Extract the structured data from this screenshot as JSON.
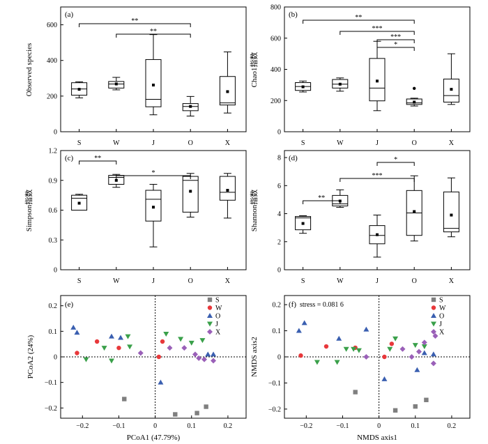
{
  "chart_data": [
    {
      "type": "box",
      "panel_label": "(a)",
      "categories": [
        "S",
        "W",
        "J",
        "O",
        "X"
      ],
      "ylabel": "Observed species",
      "ylim": [
        0,
        700
      ],
      "yticks": [
        "0",
        "200",
        "400",
        "600"
      ],
      "boxes": [
        {
          "min": 190,
          "q1": 205,
          "median": 240,
          "q3": 275,
          "max": 280,
          "mean": 238
        },
        {
          "min": 235,
          "q1": 245,
          "median": 268,
          "q3": 282,
          "max": 305,
          "mean": 268
        },
        {
          "min": 95,
          "q1": 140,
          "median": 182,
          "q3": 405,
          "max": 545,
          "mean": 262
        },
        {
          "min": 88,
          "q1": 118,
          "median": 142,
          "q3": 158,
          "max": 198,
          "mean": 142
        },
        {
          "min": 105,
          "q1": 150,
          "median": 162,
          "q3": 310,
          "max": 448,
          "mean": 225
        }
      ],
      "outliers": [],
      "significance": [
        {
          "from": 0,
          "to": 3,
          "label": "**"
        },
        {
          "from": 1,
          "to": 3,
          "label": "**"
        }
      ]
    },
    {
      "type": "box",
      "panel_label": "(b)",
      "categories": [
        "S",
        "W",
        "J",
        "O",
        "X"
      ],
      "ylabel": "Chao1指数",
      "ylim": [
        0,
        800
      ],
      "yticks": [
        "0",
        "200",
        "400",
        "600",
        "800"
      ],
      "boxes": [
        {
          "min": 255,
          "q1": 265,
          "median": 290,
          "q3": 315,
          "max": 325,
          "mean": 288
        },
        {
          "min": 260,
          "q1": 280,
          "median": 305,
          "q3": 335,
          "max": 345,
          "mean": 305
        },
        {
          "min": 135,
          "q1": 198,
          "median": 280,
          "q3": 470,
          "max": 580,
          "mean": 325
        },
        {
          "min": 165,
          "q1": 175,
          "median": 185,
          "q3": 210,
          "max": 215,
          "mean": 190
        },
        {
          "min": 175,
          "q1": 190,
          "median": 232,
          "q3": 338,
          "max": 500,
          "mean": 272
        }
      ],
      "outliers": [
        {
          "box": 3,
          "value": 278
        }
      ],
      "significance": [
        {
          "from": 0,
          "to": 3,
          "label": "**"
        },
        {
          "from": 1,
          "to": 3,
          "label": "***"
        },
        {
          "from": 2,
          "to": 3,
          "label": "***"
        },
        {
          "from": 2,
          "to": 3,
          "label": "*"
        }
      ]
    },
    {
      "type": "box",
      "panel_label": "(c)",
      "categories": [
        "S",
        "W",
        "J",
        "O",
        "X"
      ],
      "ylabel": "Simpson指数",
      "ylim": [
        0,
        1.2
      ],
      "yticks": [
        "0",
        "0.3",
        "0.6",
        "0.9",
        "1.2"
      ],
      "boxes": [
        {
          "min": 0.6,
          "q1": 0.6,
          "median": 0.72,
          "q3": 0.75,
          "max": 0.76,
          "mean": 0.67
        },
        {
          "min": 0.83,
          "q1": 0.86,
          "median": 0.93,
          "q3": 0.95,
          "max": 0.96,
          "mean": 0.9
        },
        {
          "min": 0.23,
          "q1": 0.49,
          "median": 0.71,
          "q3": 0.8,
          "max": 0.86,
          "mean": 0.63
        },
        {
          "min": 0.53,
          "q1": 0.58,
          "median": 0.9,
          "q3": 0.94,
          "max": 0.97,
          "mean": 0.79
        },
        {
          "min": 0.52,
          "q1": 0.7,
          "median": 0.78,
          "q3": 0.94,
          "max": 0.97,
          "mean": 0.8
        }
      ],
      "outliers": [],
      "significance": [
        {
          "from": 0,
          "to": 1,
          "label": "**"
        },
        {
          "from": 1,
          "to": 3,
          "label": "*"
        }
      ]
    },
    {
      "type": "box",
      "panel_label": "(d)",
      "categories": [
        "S",
        "W",
        "J",
        "O",
        "X"
      ],
      "ylabel": "Shannon指数",
      "ylim": [
        0,
        8.5
      ],
      "yticks": [
        "0",
        "2",
        "4",
        "6",
        "8"
      ],
      "boxes": [
        {
          "min": 2.6,
          "q1": 2.85,
          "median": 3.7,
          "q3": 3.8,
          "max": 3.85,
          "mean": 3.3
        },
        {
          "min": 4.45,
          "q1": 4.55,
          "median": 4.7,
          "q3": 5.3,
          "max": 5.7,
          "mean": 4.9
        },
        {
          "min": 0.9,
          "q1": 1.85,
          "median": 2.45,
          "q3": 3.15,
          "max": 3.9,
          "mean": 2.5
        },
        {
          "min": 2.05,
          "q1": 2.45,
          "median": 4.05,
          "q3": 5.65,
          "max": 6.7,
          "mean": 4.15
        },
        {
          "min": 2.35,
          "q1": 2.7,
          "median": 2.95,
          "q3": 5.55,
          "max": 6.55,
          "mean": 3.9
        }
      ],
      "outliers": [],
      "significance": [
        {
          "from": 0,
          "to": 1,
          "label": "**"
        },
        {
          "from": 1,
          "to": 3,
          "label": "***"
        },
        {
          "from": 2,
          "to": 3,
          "label": "*"
        }
      ]
    },
    {
      "type": "scatter",
      "panel_label": "(e)",
      "xlabel": "PCoA1 (47.79%)",
      "ylabel": "PCoA2 (24%)",
      "xlim": [
        -0.26,
        0.25
      ],
      "ylim": [
        -0.24,
        0.24
      ],
      "xticks": [
        -0.2,
        -0.1,
        0,
        0.1,
        0.2
      ],
      "yticks": [
        -0.2,
        -0.1,
        0,
        0.1,
        0.2
      ],
      "xtick_labels": [
        "−0.2",
        "−0.1",
        "0",
        "0.1",
        "0.2"
      ],
      "ytick_labels": [
        "−0.2",
        "−0.1",
        "0",
        "0.1",
        "0.2"
      ],
      "series": [
        {
          "name": "S",
          "marker": "square",
          "color": "#7f7f7f",
          "points": [
            [
              -0.085,
              -0.165
            ],
            [
              0.055,
              -0.225
            ],
            [
              0.115,
              -0.22
            ],
            [
              0.14,
              -0.195
            ]
          ]
        },
        {
          "name": "W",
          "marker": "circle",
          "color": "#e8383b",
          "points": [
            [
              -0.215,
              0.015
            ],
            [
              -0.16,
              0.06
            ],
            [
              -0.1,
              0.035
            ],
            [
              0.01,
              0.0
            ],
            [
              0.02,
              0.06
            ]
          ]
        },
        {
          "name": "O",
          "marker": "triangle-up",
          "color": "#3a5fb0",
          "points": [
            [
              -0.225,
              0.115
            ],
            [
              -0.215,
              0.095
            ],
            [
              -0.12,
              0.08
            ],
            [
              -0.095,
              0.075
            ],
            [
              0.015,
              -0.1
            ],
            [
              0.145,
              0.01
            ],
            [
              0.16,
              0.01
            ]
          ]
        },
        {
          "name": "J",
          "marker": "triangle-down",
          "color": "#3aa04a",
          "points": [
            [
              -0.19,
              -0.01
            ],
            [
              -0.14,
              0.035
            ],
            [
              -0.12,
              -0.015
            ],
            [
              -0.075,
              0.08
            ],
            [
              -0.07,
              0.04
            ],
            [
              0.03,
              0.09
            ],
            [
              0.07,
              0.07
            ],
            [
              0.1,
              0.055
            ],
            [
              0.13,
              0.065
            ]
          ]
        },
        {
          "name": "X",
          "marker": "diamond",
          "color": "#9a60b8",
          "points": [
            [
              -0.04,
              0.015
            ],
            [
              0.04,
              0.035
            ],
            [
              0.08,
              0.035
            ],
            [
              0.11,
              0.01
            ],
            [
              0.12,
              -0.005
            ],
            [
              0.135,
              -0.01
            ],
            [
              0.16,
              -0.015
            ]
          ]
        }
      ]
    },
    {
      "type": "scatter",
      "panel_label": "(f)",
      "annotation": "stress = 0.081 6",
      "xlabel": "NMDS axis1",
      "ylabel": "NMDS axis2",
      "xlim": [
        -0.26,
        0.25
      ],
      "ylim": [
        -0.235,
        0.235
      ],
      "xticks": [
        -0.2,
        -0.1,
        0,
        0.1,
        0.2
      ],
      "yticks": [
        -0.2,
        -0.1,
        0,
        0.1,
        0.2
      ],
      "xtick_labels": [
        "−0.2",
        "−0.1",
        "0",
        "0.1",
        "0.2"
      ],
      "ytick_labels": [
        "−0.2",
        "−0.1",
        "0",
        "0.1",
        "0.2"
      ],
      "series": [
        {
          "name": "S",
          "marker": "square",
          "color": "#7f7f7f",
          "points": [
            [
              -0.065,
              -0.135
            ],
            [
              0.045,
              -0.205
            ],
            [
              0.1,
              -0.19
            ],
            [
              0.13,
              -0.165
            ]
          ]
        },
        {
          "name": "W",
          "marker": "circle",
          "color": "#e8383b",
          "points": [
            [
              -0.215,
              0.005
            ],
            [
              -0.145,
              0.04
            ],
            [
              -0.065,
              0.035
            ],
            [
              0.015,
              0.0
            ],
            [
              0.035,
              0.05
            ]
          ]
        },
        {
          "name": "O",
          "marker": "triangle-up",
          "color": "#3a5fb0",
          "points": [
            [
              -0.22,
              0.1
            ],
            [
              -0.205,
              0.13
            ],
            [
              -0.11,
              0.07
            ],
            [
              -0.035,
              0.105
            ],
            [
              0.015,
              -0.085
            ],
            [
              0.105,
              -0.05
            ],
            [
              0.125,
              0.015
            ],
            [
              0.15,
              0.01
            ]
          ]
        },
        {
          "name": "J",
          "marker": "triangle-down",
          "color": "#3aa04a",
          "points": [
            [
              -0.17,
              -0.02
            ],
            [
              -0.09,
              0.03
            ],
            [
              -0.07,
              0.03
            ],
            [
              -0.055,
              0.025
            ],
            [
              -0.115,
              -0.02
            ],
            [
              0.03,
              0.03
            ],
            [
              0.045,
              0.07
            ],
            [
              0.1,
              0.045
            ],
            [
              0.125,
              0.04
            ]
          ]
        },
        {
          "name": "X",
          "marker": "diamond",
          "color": "#9a60b8",
          "points": [
            [
              -0.035,
              0.0
            ],
            [
              0.065,
              0.03
            ],
            [
              0.09,
              0.0
            ],
            [
              0.11,
              0.02
            ],
            [
              0.125,
              0.055
            ],
            [
              0.15,
              -0.025
            ],
            [
              0.155,
              0.08
            ]
          ]
        }
      ]
    }
  ]
}
